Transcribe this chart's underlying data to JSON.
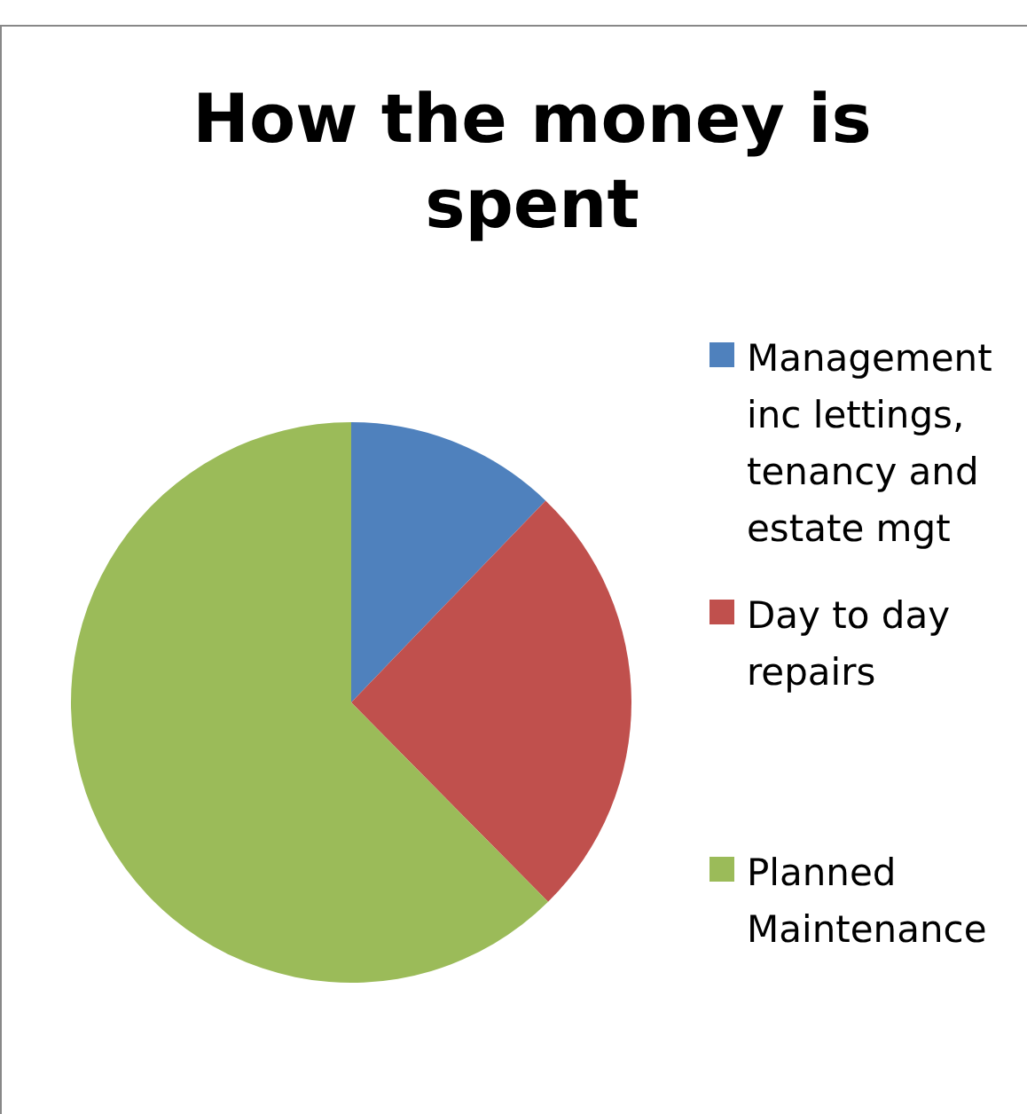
{
  "chart_data": {
    "type": "pie",
    "title": "How the money is spent",
    "categories": [
      "Management inc lettings, tenancy and estate mgt",
      "Day to day repairs",
      "Planned Maintenance"
    ],
    "values": [
      12.2,
      25.4,
      62.4
    ],
    "colors": [
      "#4f81bd",
      "#c0504d",
      "#9bbb59"
    ],
    "legend": "right"
  }
}
